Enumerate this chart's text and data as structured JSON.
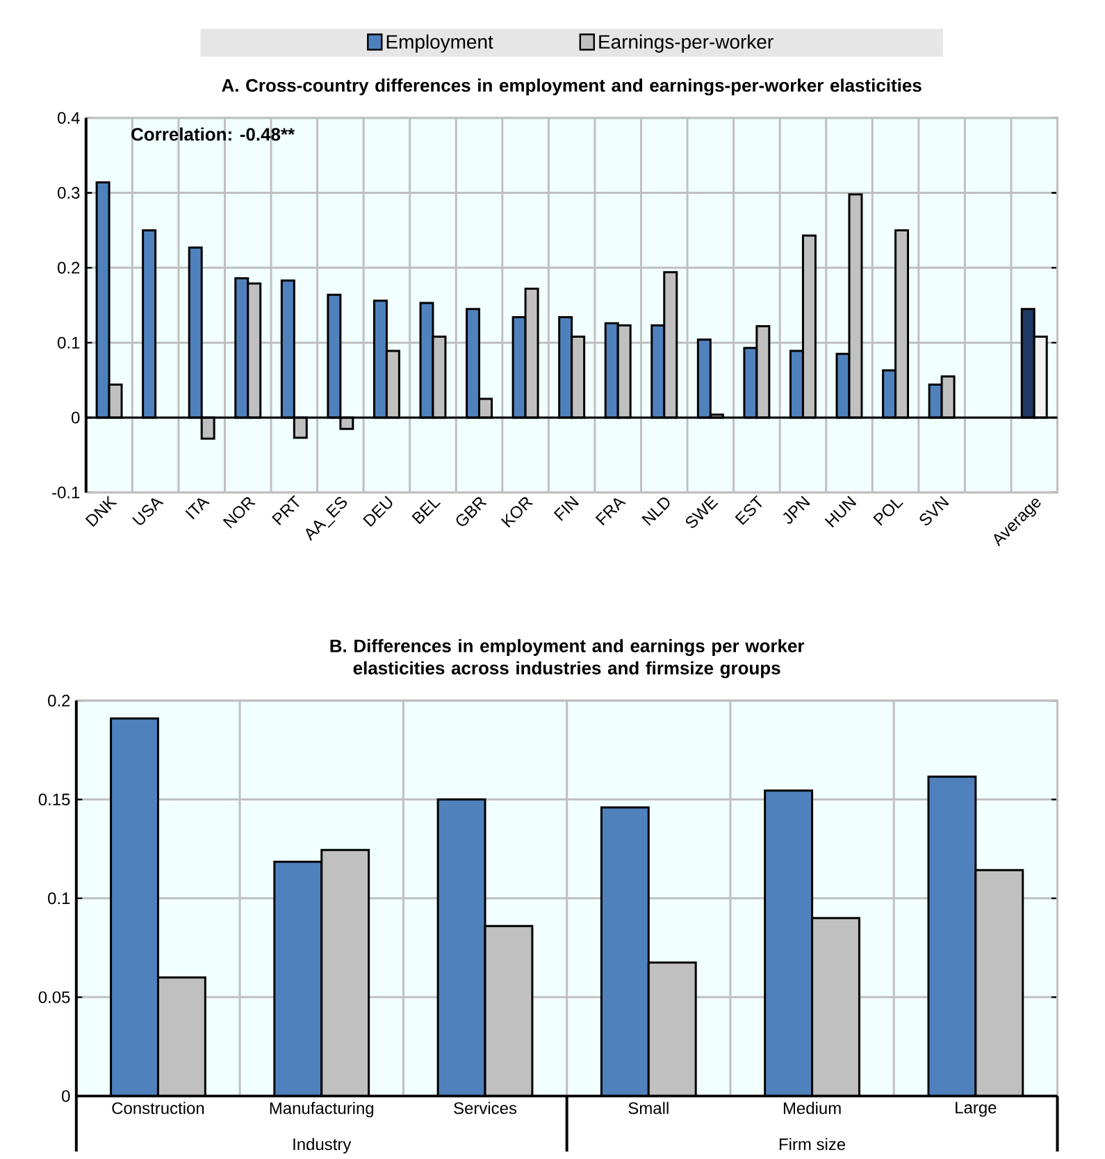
{
  "chart_data": [
    {
      "type": "bar",
      "title": "A. Cross-country differences in employment and earnings-per-worker elasticities",
      "categories": [
        "DNK",
        "USA",
        "ITA",
        "NOR",
        "PRT",
        "AA_ES",
        "DEU",
        "BEL",
        "GBR",
        "KOR",
        "FIN",
        "FRA",
        "NLD",
        "SWE",
        "EST",
        "JPN",
        "HUN",
        "POL",
        "SVN",
        null,
        "Average"
      ],
      "series": [
        {
          "name": "Employment",
          "color": "#4f81bd",
          "colors": [
            "#4f81bd",
            "#4f81bd",
            "#4f81bd",
            "#4f81bd",
            "#4f81bd",
            "#4f81bd",
            "#4f81bd",
            "#4f81bd",
            "#4f81bd",
            "#4f81bd",
            "#4f81bd",
            "#4f81bd",
            "#4f81bd",
            "#4f81bd",
            "#4f81bd",
            "#4f81bd",
            "#4f81bd",
            "#4f81bd",
            "#4f81bd",
            "#4f81bd",
            "#1f3864"
          ],
          "values": [
            0.314,
            0.25,
            0.227,
            0.186,
            0.183,
            0.164,
            0.156,
            0.153,
            0.145,
            0.134,
            0.134,
            0.126,
            0.123,
            0.104,
            0.093,
            0.089,
            0.085,
            0.063,
            0.044,
            null,
            0.145
          ]
        },
        {
          "name": "Earnings-per-worker",
          "color": "#c0c0c0",
          "colors": [
            "#c0c0c0",
            "#c0c0c0",
            "#c0c0c0",
            "#c0c0c0",
            "#c0c0c0",
            "#c0c0c0",
            "#c0c0c0",
            "#c0c0c0",
            "#c0c0c0",
            "#c0c0c0",
            "#c0c0c0",
            "#c0c0c0",
            "#c0c0c0",
            "#c0c0c0",
            "#c0c0c0",
            "#c0c0c0",
            "#c0c0c0",
            "#c0c0c0",
            "#c0c0c0",
            "#c0c0c0",
            "#f2f2f2"
          ],
          "values": [
            0.044,
            null,
            -0.028,
            0.179,
            -0.027,
            -0.015,
            0.089,
            0.108,
            0.025,
            0.172,
            0.108,
            0.123,
            0.194,
            0.004,
            0.122,
            0.243,
            0.298,
            0.25,
            0.055,
            null,
            0.108
          ]
        }
      ],
      "ylim": [
        -0.1,
        0.4
      ],
      "yticks": [
        -0.1,
        0,
        0.1,
        0.2,
        0.3,
        0.4
      ],
      "grid": true,
      "legend": "top",
      "annotations": [
        "Correlation: -0.48**"
      ]
    },
    {
      "type": "bar",
      "title": "B. Differences in employment and earnings per worker elasticities across industries and firmsize groups",
      "categories": [
        "Construction",
        "Manufacturing",
        "Services",
        "Small",
        "Medium",
        "Large"
      ],
      "series": [
        {
          "color": "#4f81bd",
          "values": [
            0.191,
            0.1185,
            0.15,
            0.146,
            0.1545,
            0.1615
          ]
        },
        {
          "color": "#c0c0c0",
          "values": [
            0.06,
            0.1245,
            0.086,
            0.0675,
            0.09,
            0.1143
          ]
        }
      ],
      "ylim": [
        0,
        0.2
      ],
      "yticks": [
        0,
        0.05,
        0.1,
        0.15,
        0.2
      ],
      "grid": true,
      "annotations": [
        "Industry",
        "Firm size"
      ]
    }
  ]
}
